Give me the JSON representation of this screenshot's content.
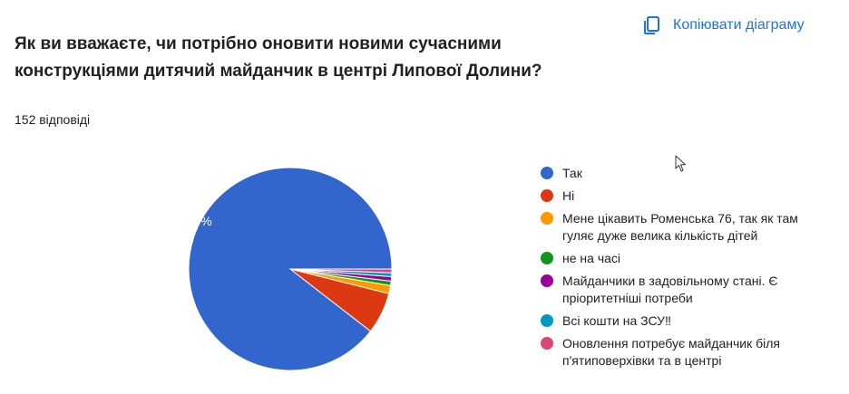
{
  "header": {
    "copy_label": "Копіювати діаграму",
    "copy_icon": "copy-icon"
  },
  "question": {
    "title": "Як ви вважаєте, чи потрібно оновити новими сучасними конструкціями дитячий майданчик в центрі Липової Долини?",
    "responses": "152 відповіді"
  },
  "chart_data": {
    "type": "pie",
    "title": "Як ви вважаєте, чи потрібно оновити новими сучасними конструкціями дитячий майданчик в центрі Липової Долини?",
    "total": 152,
    "slices": [
      {
        "label": "Так",
        "value": 89.5,
        "color": "#3366cc",
        "data_label": "89,5%"
      },
      {
        "label": "Ні",
        "value": 6.6,
        "color": "#dc3912",
        "data_label": ""
      },
      {
        "label": "Мене цікавить Роменська 76, так як там гуляє дуже велика кількість дітей",
        "value": 1.3,
        "color": "#ff9900",
        "data_label": ""
      },
      {
        "label": "не на часі",
        "value": 0.7,
        "color": "#109618",
        "data_label": ""
      },
      {
        "label": "Майданчики в задовільному стані. Є пріоритетніші потреби",
        "value": 0.7,
        "color": "#990099",
        "data_label": ""
      },
      {
        "label": "Всі кошти на ЗСУ‼",
        "value": 0.6,
        "color": "#0099c6",
        "data_label": ""
      },
      {
        "label": "Оновлення потребує майданчик біля п'ятиповерхівки та в центрі",
        "value": 0.6,
        "color": "#dd4477",
        "data_label": ""
      }
    ],
    "legend_position": "right"
  }
}
